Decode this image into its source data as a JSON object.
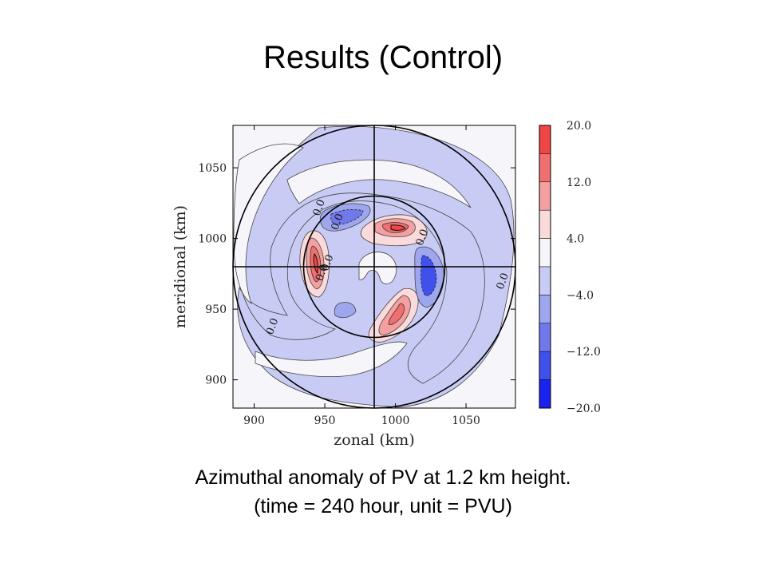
{
  "slide": {
    "title": "Results (Control)",
    "caption_line1": "Azimuthal anomaly of PV at 1.2 km height.",
    "caption_line2": "(time = 240 hour, unit = PVU)"
  },
  "chart_data": {
    "type": "heatmap",
    "xlabel": "zonal (km)",
    "ylabel": "meridional (km)",
    "xlim": [
      885,
      1085
    ],
    "ylim": [
      880,
      1080
    ],
    "xticks": [
      900,
      950,
      1000,
      1050
    ],
    "yticks": [
      900,
      950,
      1000,
      1050
    ],
    "center": [
      990,
      980
    ],
    "circle_radii_km": [
      50,
      100
    ],
    "crosshair": true,
    "contour_labels": [
      {
        "text": "0.0",
        "x": 948,
        "y": 1021
      },
      {
        "text": "0.0",
        "x": 961,
        "y": 1011
      },
      {
        "text": "0.0",
        "x": 1021,
        "y": 1000
      },
      {
        "text": "0.0",
        "x": 954,
        "y": 982
      },
      {
        "text": "0.0",
        "x": 950,
        "y": 975
      },
      {
        "text": "0.0",
        "x": 1078,
        "y": 969
      },
      {
        "text": "0.0",
        "x": 915,
        "y": 937
      }
    ],
    "colorbar": {
      "levels": [
        20.0,
        16.0,
        12.0,
        8.0,
        4.0,
        -4.0,
        -8.0,
        -12.0,
        -16.0,
        -20.0
      ],
      "labels": [
        "20.0",
        "12.0",
        "4.0",
        "−4.0",
        "−12.0",
        "−20.0"
      ],
      "colors": [
        "#f04545",
        "#f07070",
        "#f4a0a0",
        "#fadada",
        "#f6f6fa",
        "#c8ccf4",
        "#9ea6ee",
        "#7078ea",
        "#4050ea",
        "#1a22ee"
      ]
    },
    "regions": [
      {
        "name": "positive-anomaly-north",
        "value_max": 20.0,
        "x": 1004,
        "y": 1010
      },
      {
        "name": "positive-anomaly-west",
        "value_max": 20.0,
        "x": 945,
        "y": 982
      },
      {
        "name": "positive-anomaly-south",
        "value_max": 12.0,
        "x": 1008,
        "y": 941
      },
      {
        "name": "negative-anomaly-east",
        "value_min": -16.0,
        "x": 1027,
        "y": 980
      },
      {
        "name": "negative-anomaly-northwest",
        "value_min": -12.0,
        "x": 960,
        "y": 1011
      }
    ]
  }
}
